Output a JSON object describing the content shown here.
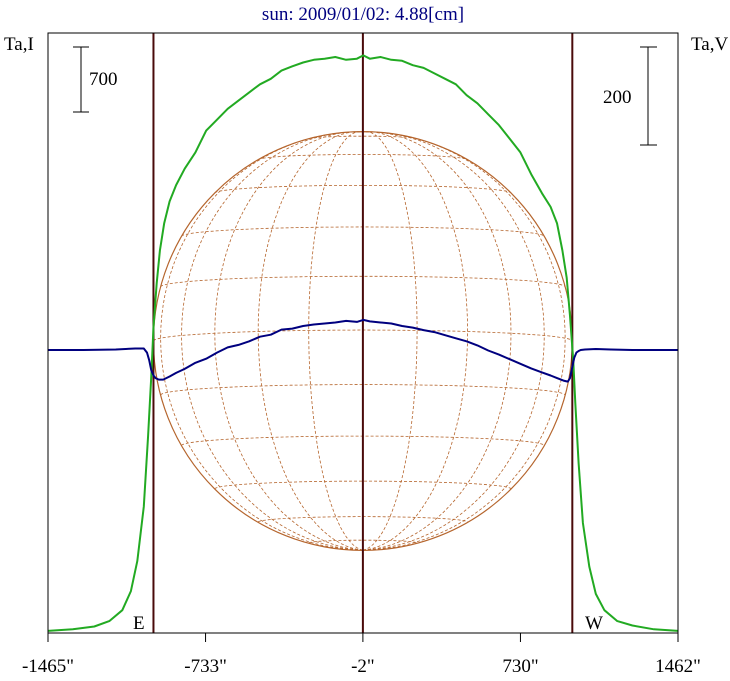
{
  "title": "sun: 2009/01/02: 4.88[cm]",
  "left_axis_label": "Ta,I",
  "right_axis_label": "Ta,V",
  "left_scale_label": "700",
  "right_scale_label": "200",
  "east_label": "E",
  "west_label": "W",
  "colors": {
    "title": "#000080",
    "intensity": "#22aa22",
    "polarization": "#00007f",
    "limb_lines": "#4a0a0a",
    "disk": "#b5652d",
    "frame": "#000000"
  },
  "chart_data": {
    "type": "line",
    "title": "sun: 2009/01/02: 4.88[cm]",
    "xlabel": "",
    "x_unit": "arcsec",
    "xlim": [
      -1465,
      1462
    ],
    "xticks": [
      -1465,
      -733,
      -2,
      730,
      1462
    ],
    "xtick_labels": [
      "-1465\"",
      "-733\"",
      "-2\"",
      "730\"",
      "1462\""
    ],
    "vertical_lines": [
      -975,
      -2,
      971
    ],
    "disk": {
      "center_x": -2,
      "radius": 973
    },
    "scale_bars": [
      {
        "axis": "left",
        "label": "700"
      },
      {
        "axis": "right",
        "label": "200"
      }
    ],
    "grid": false,
    "series": [
      {
        "name": "I",
        "axis": "left",
        "color": "#22aa22",
        "x": [
          -1465,
          -1350,
          -1250,
          -1180,
          -1120,
          -1080,
          -1050,
          -1020,
          -1000,
          -985,
          -975,
          -960,
          -945,
          -925,
          -900,
          -870,
          -830,
          -780,
          -730,
          -680,
          -630,
          -580,
          -530,
          -480,
          -430,
          -380,
          -330,
          -280,
          -230,
          -180,
          -130,
          -80,
          -30,
          0,
          30,
          80,
          130,
          180,
          230,
          280,
          330,
          380,
          430,
          480,
          530,
          580,
          630,
          680,
          730,
          780,
          830,
          870,
          900,
          925,
          945,
          960,
          975,
          985,
          1000,
          1020,
          1050,
          1080,
          1120,
          1180,
          1250,
          1350,
          1462
        ],
        "y": [
          2,
          5,
          10,
          20,
          40,
          75,
          130,
          230,
          360,
          470,
          560,
          640,
          700,
          750,
          790,
          820,
          850,
          880,
          920,
          940,
          960,
          975,
          990,
          1005,
          1015,
          1030,
          1038,
          1045,
          1050,
          1052,
          1055,
          1050,
          1052,
          1058,
          1052,
          1055,
          1050,
          1048,
          1040,
          1035,
          1025,
          1015,
          1005,
          985,
          970,
          950,
          930,
          905,
          880,
          840,
          805,
          780,
          750,
          700,
          650,
          580,
          500,
          420,
          310,
          200,
          120,
          70,
          40,
          20,
          12,
          5,
          2
        ]
      },
      {
        "name": "V",
        "axis": "right",
        "color": "#00007f",
        "x": [
          -1465,
          -1300,
          -1150,
          -1060,
          -1020,
          -1005,
          -995,
          -985,
          -975,
          -965,
          -950,
          -930,
          -900,
          -870,
          -830,
          -780,
          -730,
          -680,
          -630,
          -580,
          -530,
          -480,
          -430,
          -380,
          -330,
          -280,
          -230,
          -180,
          -130,
          -80,
          -30,
          0,
          30,
          80,
          130,
          180,
          230,
          280,
          330,
          380,
          430,
          480,
          530,
          580,
          630,
          680,
          730,
          780,
          830,
          870,
          900,
          930,
          950,
          960,
          970,
          980,
          990,
          1000,
          1010,
          1030,
          1080,
          1150,
          1250,
          1350,
          1462
        ],
        "y": [
          0,
          0,
          1,
          3,
          3,
          -5,
          -20,
          -40,
          -50,
          -55,
          -58,
          -58,
          -52,
          -45,
          -37,
          -25,
          -17,
          -5,
          5,
          10,
          17,
          26,
          30,
          40,
          42,
          47,
          50,
          52,
          54,
          57,
          55,
          59,
          56,
          54,
          52,
          47,
          44,
          39,
          35,
          29,
          23,
          17,
          9,
          -1,
          -9,
          -18,
          -27,
          -36,
          -44,
          -50,
          -55,
          -60,
          -62,
          -55,
          -35,
          -15,
          -5,
          -2,
          0,
          1,
          2,
          1,
          0,
          0,
          0
        ]
      }
    ]
  }
}
